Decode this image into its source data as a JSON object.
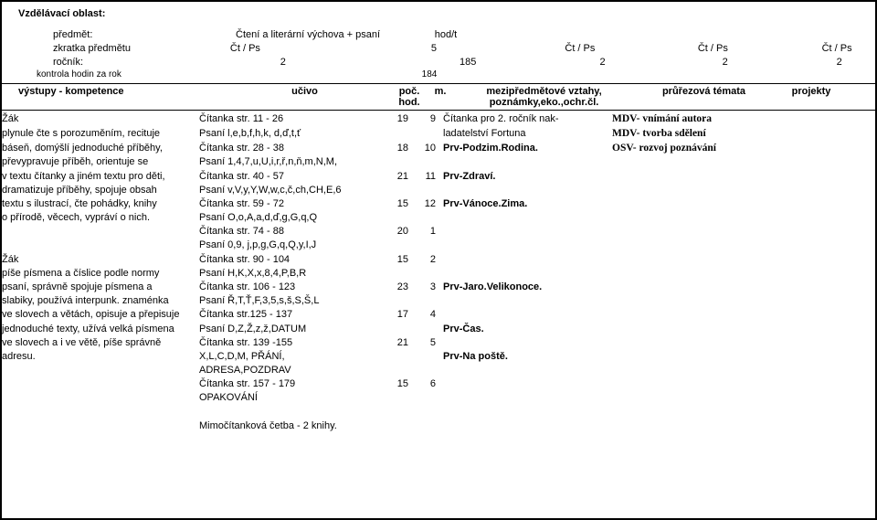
{
  "header": {
    "title": "Vzdělávací oblast:",
    "rows": [
      {
        "label": "předmět:",
        "value": "Čtení a literární výchova + psaní",
        "right": "hod/t"
      },
      {
        "label": "zkratka předmětu",
        "value": "Čt   /   Ps",
        "right": "5",
        "cols": [
          "Čt   /   Ps",
          "Čt   /   Ps",
          "Čt   /   Ps"
        ]
      },
      {
        "label": "ročník:",
        "value": "2",
        "right": "185",
        "cols": [
          "2",
          "2",
          "2"
        ]
      },
      {
        "label": "kontrola hodin za rok",
        "value": "",
        "right": "184"
      }
    ],
    "headings": {
      "c1": "výstupy  -  kompetence",
      "c2": "učivo",
      "c3a": "poč.",
      "c3b": "hod.",
      "c4": "m.",
      "c5a": "mezipředmětové vztahy,",
      "c5b": "poznámky,eko.,ochr.čl.",
      "c6": "průřezová témata",
      "c7": "projekty"
    }
  },
  "left": [
    "Žák",
    "plynule čte s porozuměním, recituje",
    "báseň, domýšlí jednoduché příběhy,",
    "převypravuje příběh, orientuje se",
    "v textu čítanky a jiném textu pro děti,",
    "dramatizuje příběhy, spojuje obsah",
    "textu s ilustrací, čte pohádky, knihy",
    "o přírodě, věcech, vypráví o nich.",
    "",
    "",
    "Žák",
    "píše písmena a číslice podle normy",
    "psaní, správně spojuje písmena a",
    "slabiky, používá interpunk. znaménka",
    "ve slovech a větách, opisuje a přepisuje",
    "jednoduché texty, užívá velká písmena",
    "ve slovech a i ve větě, píše správně",
    "adresu."
  ],
  "ucivo": [
    "Čítanka str. 11 - 26",
    "Psaní l,e,b,f,h,k, d,ď,t,ť",
    "Čítanka str. 28 - 38",
    "Psaní 1,4,7,u,U,i,r,ř,n,ň,m,N,M,",
    "Čítanka str. 40 - 57",
    "Psaní v,V,y,Y,W,w,c,č,ch,CH,E,6",
    "Čítanka str. 59 - 72",
    "Psaní O,o,A,a,d,ď,g,G,q,Q",
    "Čítanka str. 74 - 88",
    "Psaní 0,9, j,p,g,G,q,Q,y,I,J",
    "Čítanka str. 90 - 104",
    "Psaní H,K,X,x,8,4,P,B,R",
    "Čítanka str. 106 - 123",
    "Psaní Ř,T,Ť,F,3,5,s,š,S,Š,L",
    "Čítanka str.125 - 137",
    "Psaní D,Z,Ž,z,ž,DATUM",
    "Čítanka str. 139 -155",
    "X,L,C,D,M, PŘÁNÍ, ADRESA,POZDRAV",
    "Čítanka str. 157 - 179",
    "OPAKOVÁNÍ",
    "",
    "Mimočítanková četba - 2 knihy."
  ],
  "poc": [
    "19",
    "",
    "18",
    "",
    "21",
    "",
    "15",
    "",
    "20",
    "",
    "15",
    "",
    "23",
    "",
    "17",
    "",
    "21",
    "",
    "15",
    "",
    "",
    ""
  ],
  "m": [
    "9",
    "",
    "10",
    "",
    "11",
    "",
    "12",
    "",
    "1",
    "",
    "2",
    "",
    "3",
    "",
    "4",
    "",
    "5",
    "",
    "6",
    "",
    "",
    ""
  ],
  "mezi": [
    "Čítanka pro 2. ročník nak-",
    "ladatelství Fortuna",
    "Prv-Podzim.Rodina.",
    "",
    "Prv-Zdraví.",
    "",
    "Prv-Vánoce.Zima.",
    "",
    "",
    "",
    "",
    "",
    "Prv-Jaro.Velikonoce.",
    "",
    "",
    "Prv-Čas.",
    "",
    "Prv-Na poště.",
    "",
    "",
    "",
    ""
  ],
  "pruz": [
    "MDV- vnímání autora",
    "MDV- tvorba sdělení",
    "OSV- rozvoj poznávání",
    "",
    "",
    "",
    "",
    "",
    "",
    "",
    "",
    "",
    "",
    "",
    "",
    "",
    "",
    "",
    "",
    "",
    "",
    ""
  ]
}
